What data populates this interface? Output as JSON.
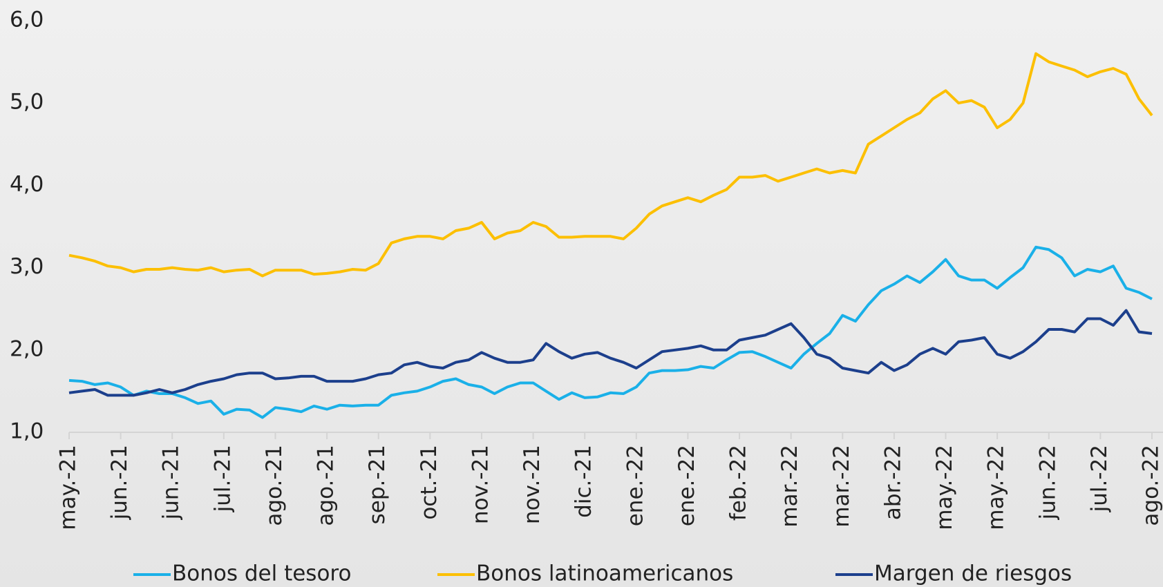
{
  "chart_data": {
    "type": "line",
    "categories": [
      "may.-21",
      null,
      null,
      null,
      "jun.-21",
      null,
      null,
      null,
      "jun.-21",
      null,
      null,
      null,
      "jul.-21",
      null,
      null,
      null,
      "ago.-21",
      null,
      null,
      null,
      "ago.-21",
      null,
      null,
      null,
      "sep.-21",
      null,
      null,
      null,
      "oct.-21",
      null,
      null,
      null,
      "nov.-21",
      null,
      null,
      null,
      "nov.-21",
      null,
      null,
      null,
      "dic.-21",
      null,
      null,
      null,
      "ene.-22",
      null,
      null,
      null,
      "ene.-22",
      null,
      null,
      null,
      "feb.-22",
      null,
      null,
      null,
      "mar.-22",
      null,
      null,
      null,
      "mar.-22",
      null,
      null,
      null,
      "abr.-22",
      null,
      null,
      null,
      "may.-22",
      null,
      null,
      null,
      "may.-22",
      null,
      null,
      null,
      "jun.-22",
      null,
      null,
      null,
      "jul.-22",
      null,
      null,
      null,
      "ago.-22"
    ],
    "series": [
      {
        "name": "Bonos del tesoro",
        "color": "#1ab0e8",
        "values": [
          1.63,
          1.62,
          1.58,
          1.6,
          1.55,
          1.45,
          1.5,
          1.47,
          1.47,
          1.42,
          1.35,
          1.38,
          1.22,
          1.28,
          1.27,
          1.18,
          1.3,
          1.28,
          1.25,
          1.32,
          1.28,
          1.33,
          1.32,
          1.33,
          1.33,
          1.45,
          1.48,
          1.5,
          1.55,
          1.62,
          1.65,
          1.58,
          1.55,
          1.47,
          1.55,
          1.6,
          1.6,
          1.5,
          1.4,
          1.48,
          1.42,
          1.43,
          1.48,
          1.47,
          1.55,
          1.72,
          1.75,
          1.75,
          1.76,
          1.8,
          1.78,
          1.88,
          1.97,
          1.98,
          1.92,
          1.85,
          1.78,
          1.95,
          2.08,
          2.2,
          2.42,
          2.35,
          2.55,
          2.72,
          2.8,
          2.9,
          2.82,
          2.95,
          3.1,
          2.9,
          2.85,
          2.85,
          2.75,
          2.88,
          3.0,
          3.25,
          3.22,
          3.12,
          2.9,
          2.98,
          2.95,
          3.02,
          2.75,
          2.7,
          2.62
        ]
      },
      {
        "name": "Bonos latinoamericanos",
        "color": "#fcbf00",
        "values": [
          3.15,
          3.12,
          3.08,
          3.02,
          3.0,
          2.95,
          2.98,
          2.98,
          3.0,
          2.98,
          2.97,
          3.0,
          2.95,
          2.97,
          2.98,
          2.9,
          2.97,
          2.97,
          2.97,
          2.92,
          2.93,
          2.95,
          2.98,
          2.97,
          3.05,
          3.3,
          3.35,
          3.38,
          3.38,
          3.35,
          3.45,
          3.48,
          3.55,
          3.35,
          3.42,
          3.45,
          3.55,
          3.5,
          3.37,
          3.37,
          3.38,
          3.38,
          3.38,
          3.35,
          3.48,
          3.65,
          3.75,
          3.8,
          3.85,
          3.8,
          3.88,
          3.95,
          4.1,
          4.1,
          4.12,
          4.05,
          4.1,
          4.15,
          4.2,
          4.15,
          4.18,
          4.15,
          4.5,
          4.6,
          4.7,
          4.8,
          4.88,
          5.05,
          5.15,
          5.0,
          5.03,
          4.95,
          4.7,
          4.8,
          5.0,
          5.6,
          5.5,
          5.45,
          5.4,
          5.32,
          5.38,
          5.42,
          5.35,
          5.05,
          4.85
        ]
      },
      {
        "name": "Margen de riesgos",
        "color": "#1c3f8c",
        "values": [
          1.48,
          1.5,
          1.52,
          1.45,
          1.45,
          1.45,
          1.48,
          1.52,
          1.48,
          1.52,
          1.58,
          1.62,
          1.65,
          1.7,
          1.72,
          1.72,
          1.65,
          1.66,
          1.68,
          1.68,
          1.62,
          1.62,
          1.62,
          1.65,
          1.7,
          1.72,
          1.82,
          1.85,
          1.8,
          1.78,
          1.85,
          1.88,
          1.97,
          1.9,
          1.85,
          1.85,
          1.88,
          2.08,
          1.98,
          1.9,
          1.95,
          1.97,
          1.9,
          1.85,
          1.78,
          1.88,
          1.98,
          2.0,
          2.02,
          2.05,
          2.0,
          2.0,
          2.12,
          2.15,
          2.18,
          2.25,
          2.32,
          2.15,
          1.95,
          1.9,
          1.78,
          1.75,
          1.72,
          1.85,
          1.75,
          1.82,
          1.95,
          2.02,
          1.95,
          2.1,
          2.12,
          2.15,
          1.95,
          1.9,
          1.98,
          2.1,
          2.25,
          2.25,
          2.22,
          2.38,
          2.38,
          2.3,
          2.48,
          2.22,
          2.2
        ]
      }
    ],
    "ylim": [
      1,
      6
    ],
    "yticks": [
      {
        "value": 1,
        "label": "1,0"
      },
      {
        "value": 2,
        "label": "2,0"
      },
      {
        "value": 3,
        "label": "3,0"
      },
      {
        "value": 4,
        "label": "4,0"
      },
      {
        "value": 5,
        "label": "5,0"
      },
      {
        "value": 6,
        "label": "6,0"
      }
    ],
    "grid": false
  }
}
